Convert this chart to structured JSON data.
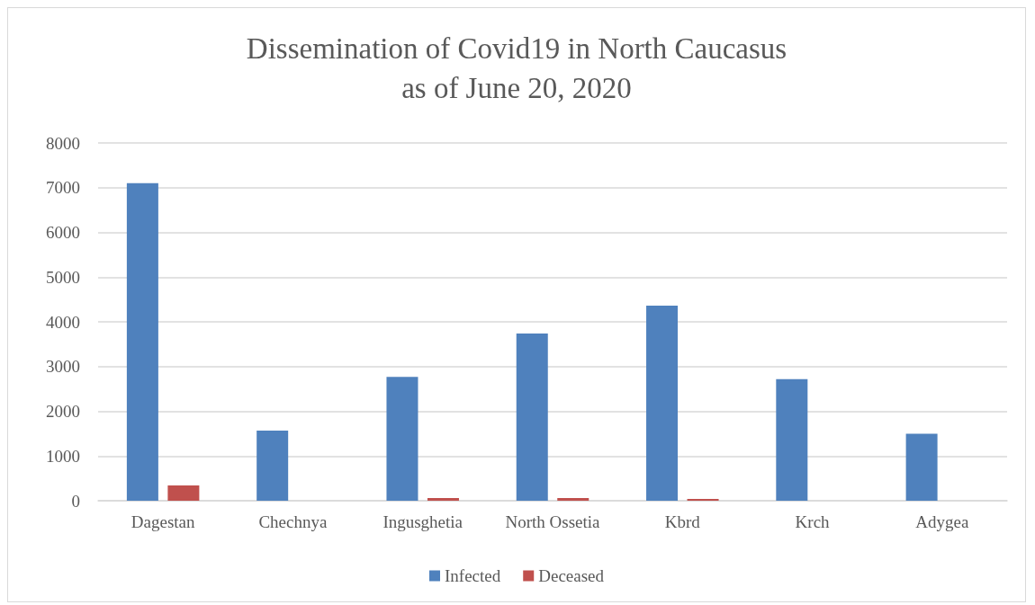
{
  "chart_data": {
    "type": "bar",
    "title": "Dissemination of Covid19 in North Caucasus\nas of June 20, 2020",
    "categories": [
      "Dagestan",
      "Chechnya",
      "Ingusghetia",
      "North Ossetia",
      "Kbrd",
      "Krch",
      "Adygea"
    ],
    "series": [
      {
        "name": "Infected",
        "color": "#4f81bd",
        "values": [
          7100,
          1570,
          2770,
          3740,
          4360,
          2720,
          1500
        ]
      },
      {
        "name": "Deceased",
        "color": "#c0504d",
        "values": [
          340,
          null,
          60,
          60,
          40,
          null,
          null
        ]
      }
    ],
    "ylim": [
      0,
      8000
    ],
    "yticks": [
      0,
      1000,
      2000,
      3000,
      4000,
      5000,
      6000,
      7000,
      8000
    ],
    "grid": "y",
    "legend": "bottom"
  }
}
